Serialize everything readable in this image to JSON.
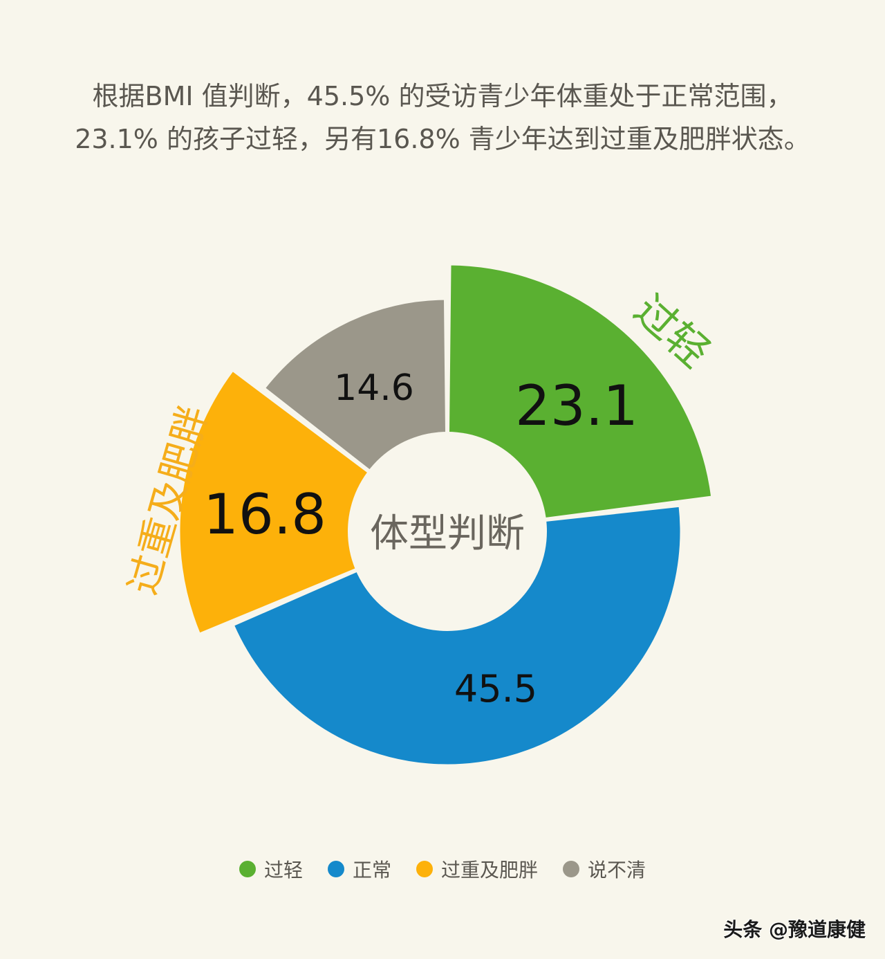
{
  "caption": {
    "line1": "根据BMI 值判断，45.5% 的受访青少年体重处于正常范围，",
    "line2": "23.1% 的孩子过轻，另有16.8% 青少年达到过重及肥胖状态。"
  },
  "chart_data": {
    "type": "pie",
    "subtype": "donut",
    "title": "体型判断",
    "categories": [
      "过轻",
      "正常",
      "过重及肥胖",
      "说不清"
    ],
    "values": [
      23.1,
      45.5,
      16.8,
      14.6
    ],
    "value_labels": [
      "23.1",
      "45.5",
      "16.8",
      "14.6"
    ],
    "unit": "%",
    "colors": [
      "#5ab031",
      "#1589cb",
      "#fdb10a",
      "#9b978a"
    ],
    "outer_radius": [
      386,
      338,
      388,
      336
    ],
    "emphasized_labels": [
      "过轻",
      null,
      "过重及肥胖",
      null
    ],
    "legend_position": "bottom"
  },
  "center_label": "体型判断",
  "legend": [
    {
      "label": "过轻",
      "color": "#5ab031"
    },
    {
      "label": "正常",
      "color": "#1589cb"
    },
    {
      "label": "过重及肥胖",
      "color": "#fdb10a"
    },
    {
      "label": "说不清",
      "color": "#9b978a"
    }
  ],
  "outer_labels": {
    "light": "过轻",
    "overweight": "过重及肥胖"
  },
  "watermark": "头条 @豫道康健"
}
